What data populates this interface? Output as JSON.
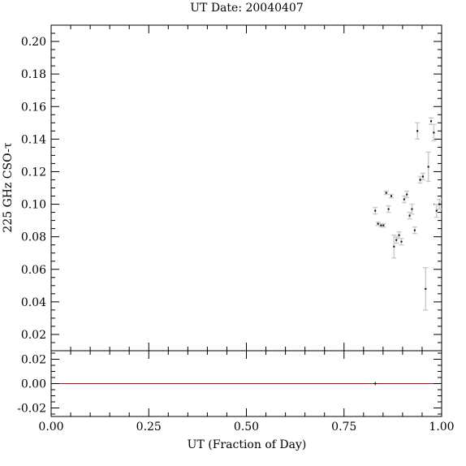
{
  "chart_data": [
    {
      "type": "scatter",
      "title": "UT Date: 20040407",
      "ylabel": "225 GHz CSO-τ",
      "xlim": [
        0.0,
        1.0
      ],
      "ylim": [
        0.01,
        0.21
      ],
      "yticks": [
        "0.02",
        "0.04",
        "0.06",
        "0.08",
        "0.10",
        "0.12",
        "0.14",
        "0.16",
        "0.18",
        "0.20"
      ],
      "grid": false,
      "series": [
        {
          "marker_color": "#000000",
          "errorbar_color": "#cccccc",
          "points": [
            {
              "x": 0.83,
              "y": 0.096,
              "err": 0.002
            },
            {
              "x": 0.837,
              "y": 0.088,
              "err": 0.001
            },
            {
              "x": 0.845,
              "y": 0.087,
              "err": 0.001
            },
            {
              "x": 0.851,
              "y": 0.087,
              "err": 0.001
            },
            {
              "x": 0.858,
              "y": 0.107,
              "err": 0.001
            },
            {
              "x": 0.864,
              "y": 0.097,
              "err": 0.002
            },
            {
              "x": 0.871,
              "y": 0.105,
              "err": 0.001
            },
            {
              "x": 0.878,
              "y": 0.074,
              "err": 0.007
            },
            {
              "x": 0.884,
              "y": 0.078,
              "err": 0.002
            },
            {
              "x": 0.891,
              "y": 0.081,
              "err": 0.002
            },
            {
              "x": 0.897,
              "y": 0.077,
              "err": 0.002
            },
            {
              "x": 0.904,
              "y": 0.103,
              "err": 0.002
            },
            {
              "x": 0.911,
              "y": 0.106,
              "err": 0.002
            },
            {
              "x": 0.918,
              "y": 0.093,
              "err": 0.002
            },
            {
              "x": 0.924,
              "y": 0.097,
              "err": 0.003
            },
            {
              "x": 0.931,
              "y": 0.084,
              "err": 0.002
            },
            {
              "x": 0.938,
              "y": 0.145,
              "err": 0.005
            },
            {
              "x": 0.945,
              "y": 0.115,
              "err": 0.002
            },
            {
              "x": 0.952,
              "y": 0.117,
              "err": 0.002
            },
            {
              "x": 0.959,
              "y": 0.048,
              "err": 0.013
            },
            {
              "x": 0.966,
              "y": 0.123,
              "err": 0.009
            },
            {
              "x": 0.973,
              "y": 0.151,
              "err": 0.002
            },
            {
              "x": 0.98,
              "y": 0.144,
              "err": 0.005
            },
            {
              "x": 0.987,
              "y": 0.096,
              "err": 0.004
            },
            {
              "x": 0.994,
              "y": 0.1,
              "err": 0.003
            }
          ]
        }
      ]
    },
    {
      "type": "scatter",
      "xlabel": "UT (Fraction of Day)",
      "xlim": [
        0.0,
        1.0
      ],
      "ylim": [
        -0.027,
        0.027
      ],
      "xticks": [
        "0.00",
        "0.25",
        "0.50",
        "0.75",
        "1.00"
      ],
      "yticks": [
        "-0.02",
        "0.00",
        "0.02"
      ],
      "grid": false,
      "reference_line": {
        "y": 0.0,
        "color": "#cc0000"
      },
      "series": [
        {
          "marker_color": "#000000",
          "points": [
            {
              "x": 0.83,
              "y": 0.0
            }
          ]
        }
      ]
    }
  ]
}
